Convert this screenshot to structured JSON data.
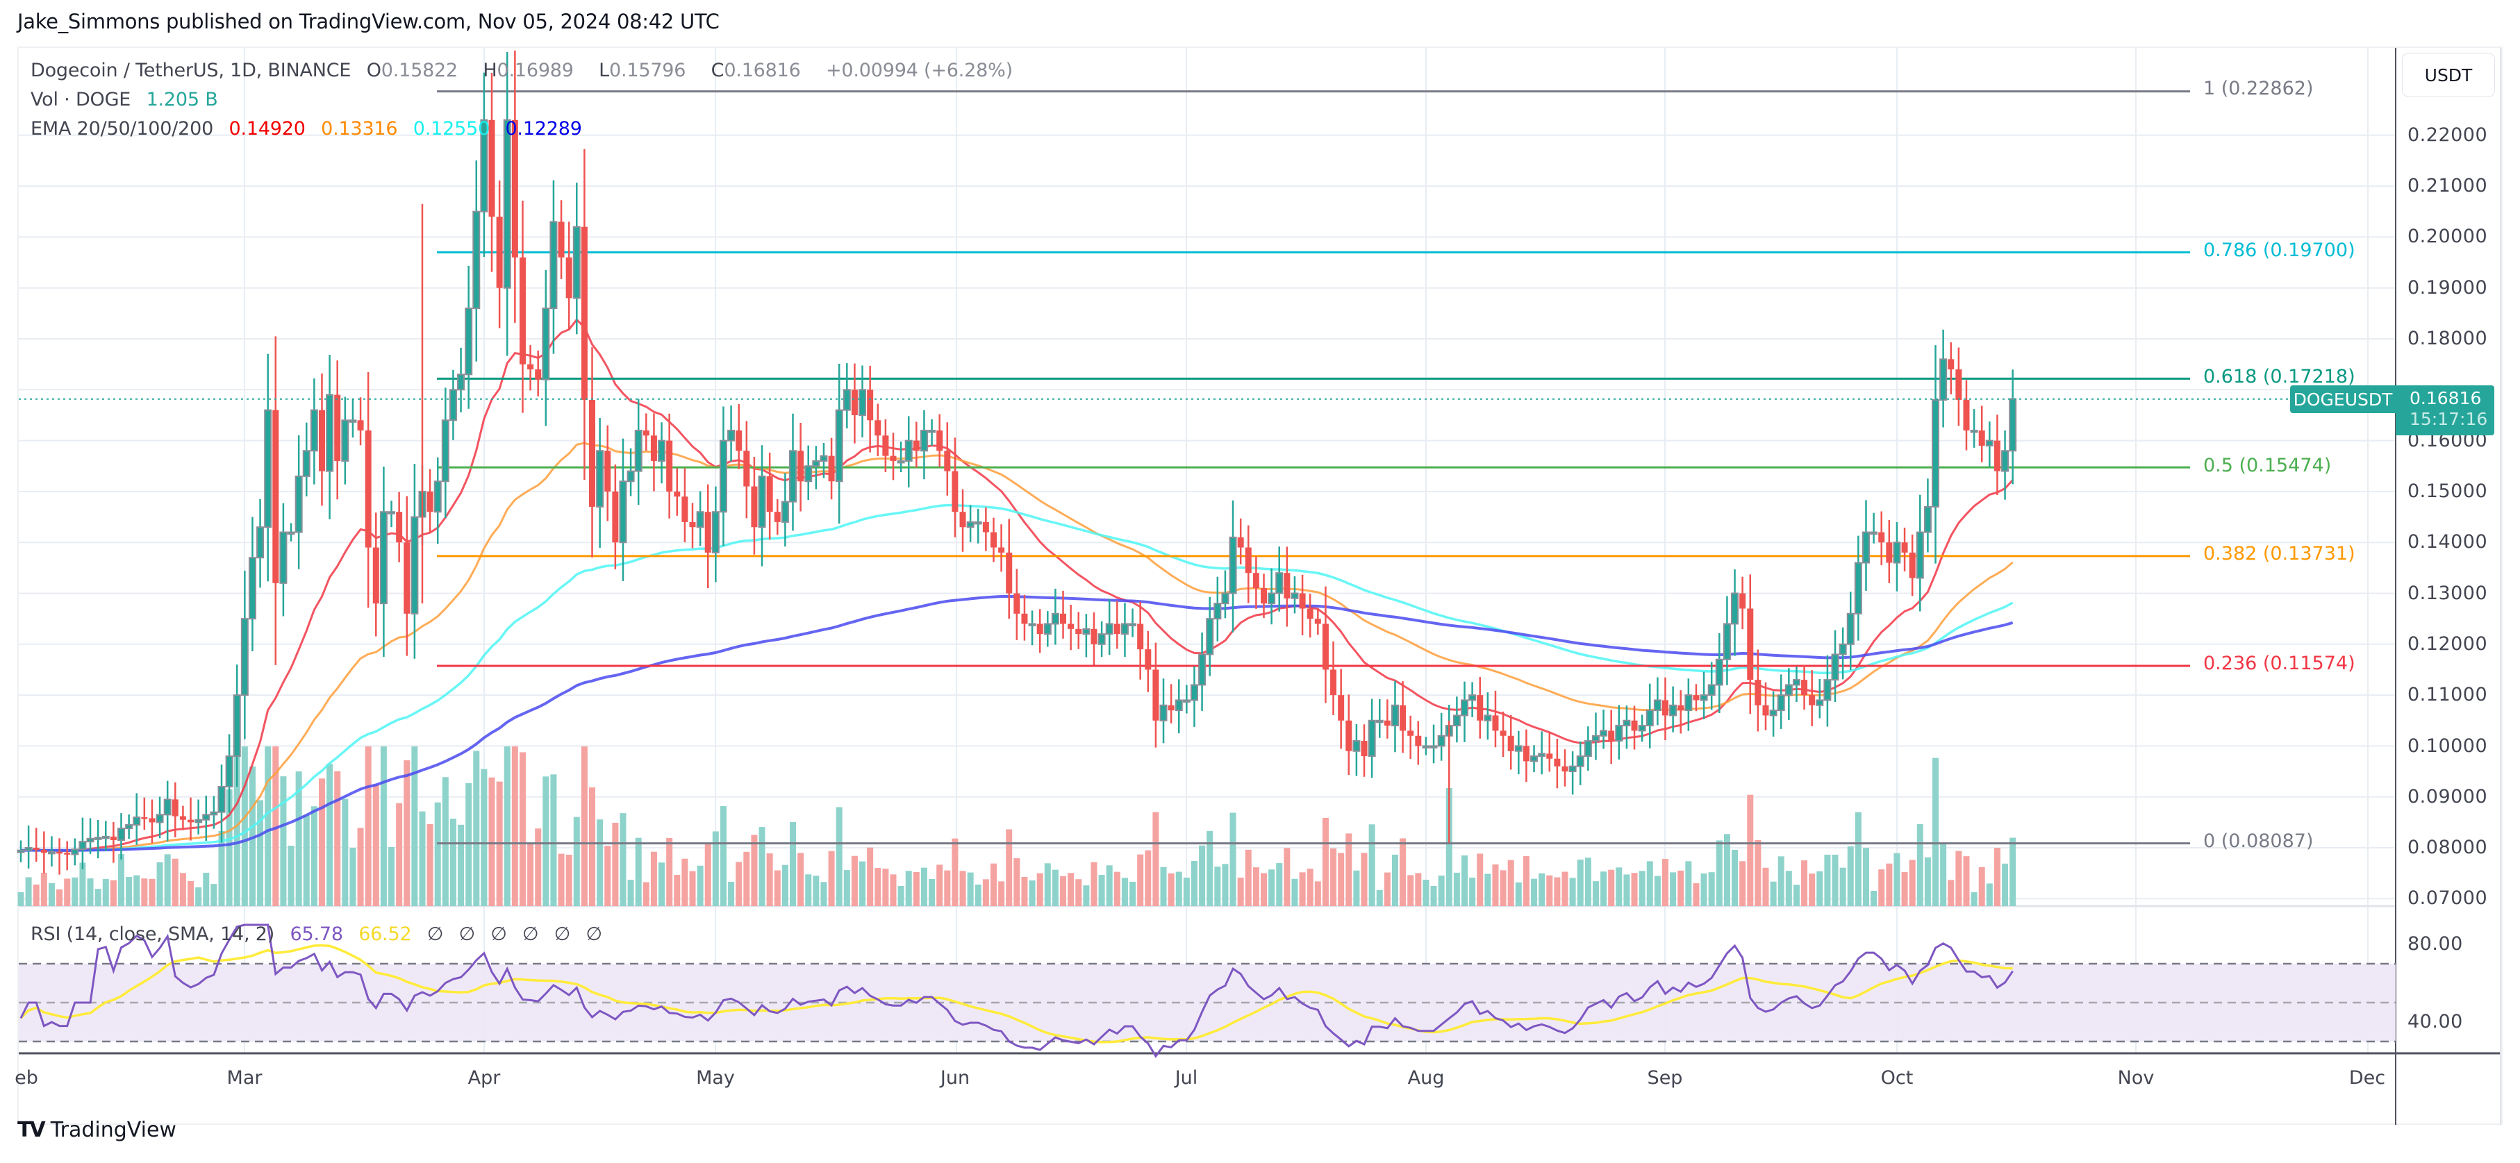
{
  "header": {
    "published_by": "Jake_Simmons published on TradingView.com, Nov 05, 2024 08:42 UTC"
  },
  "legend": {
    "symbol": "Dogecoin / TetherUS, 1D, BINANCE",
    "open_label": "O",
    "open": "0.15822",
    "high_label": "H",
    "high": "0.16989",
    "low_label": "L",
    "low": "0.15796",
    "close_label": "C",
    "close": "0.16816",
    "change": "+0.00994 (+6.28%)",
    "volume_label": "Vol · DOGE",
    "volume_value": "1.205 B",
    "ema_label": "EMA 20/50/100/200",
    "ema20": "0.14920",
    "ema50": "0.13316",
    "ema100": "0.12550",
    "ema200": "0.12289",
    "rsi_label": "RSI (14, close, SMA, 14, 2)",
    "rsi_value": "65.78",
    "rsi_sma_value": "66.52",
    "rsi_empty_slots": [
      "∅",
      "∅",
      "∅",
      "∅",
      "∅",
      "∅"
    ]
  },
  "price_axis": {
    "currency_button": "USDT",
    "ticks": [
      "0.22000",
      "0.21000",
      "0.20000",
      "0.19000",
      "0.18000",
      "0.16000",
      "0.15000",
      "0.14000",
      "0.13000",
      "0.12000",
      "0.11000",
      "0.10000",
      "0.09000",
      "0.08000",
      "0.07000"
    ],
    "rsi_ticks": [
      "80.00",
      "40.00"
    ],
    "current_symbol": "DOGEUSDT",
    "current_price": "0.16816",
    "countdown": "15:17:16"
  },
  "time_axis": {
    "months": [
      "eb",
      "Mar",
      "Apr",
      "May",
      "Jun",
      "Jul",
      "Aug",
      "Sep",
      "Oct",
      "Nov",
      "Dec"
    ]
  },
  "fib_levels": [
    {
      "ratio": "1",
      "price": "0.22862",
      "label": "1 (0.22862)",
      "color": "#787b86"
    },
    {
      "ratio": "0.786",
      "price": "0.19700",
      "label": "0.786 (0.19700)",
      "color": "#00bcd4"
    },
    {
      "ratio": "0.618",
      "price": "0.17218",
      "label": "0.618 (0.17218)",
      "color": "#089981"
    },
    {
      "ratio": "0.5",
      "price": "0.15474",
      "label": "0.5 (0.15474)",
      "color": "#4caf50"
    },
    {
      "ratio": "0.382",
      "price": "0.13731",
      "label": "0.382 (0.13731)",
      "color": "#ff9800"
    },
    {
      "ratio": "0.236",
      "price": "0.11574",
      "label": "0.236 (0.11574)",
      "color": "#f23645"
    },
    {
      "ratio": "0",
      "price": "0.08087",
      "label": "0 (0.08087)",
      "color": "#787b86"
    }
  ],
  "colors": {
    "up": "#26a69a",
    "down": "#ef5350",
    "border": "#8a8f98",
    "ema20": "#f23645",
    "ema50": "#ff9d3a",
    "ema100": "#4ff5f5",
    "ema200": "#4a4af0",
    "rsi": "#7e57c2",
    "rsi_sma": "#ffeb3b",
    "rsi_band": "#ede7f6",
    "grid": "#e8edf3"
  },
  "footer": {
    "brand": "TradingView",
    "logo": "TV"
  },
  "chart_data": {
    "type": "candlestick",
    "title": "Dogecoin / TetherUS, 1D, BINANCE",
    "xlabel": "",
    "ylabel": "USDT",
    "ylim": [
      0.065,
      0.232
    ],
    "x_start": "2024-02-01",
    "x_end": "2024-11-05",
    "candle_keyframes_note": "approximate daily closes read off chart",
    "closes": [
      0.0795,
      0.08,
      0.0796,
      0.079,
      0.0792,
      0.079,
      0.0787,
      0.0797,
      0.0812,
      0.0818,
      0.082,
      0.0822,
      0.0815,
      0.0838,
      0.0845,
      0.086,
      0.0858,
      0.085,
      0.0865,
      0.0895,
      0.0862,
      0.0855,
      0.085,
      0.0855,
      0.0865,
      0.087,
      0.092,
      0.098,
      0.11,
      0.125,
      0.137,
      0.143,
      0.166,
      0.132,
      0.142,
      0.142,
      0.153,
      0.158,
      0.166,
      0.154,
      0.169,
      0.156,
      0.164,
      0.164,
      0.162,
      0.139,
      0.128,
      0.146,
      0.146,
      0.14,
      0.126,
      0.145,
      0.15,
      0.146,
      0.152,
      0.164,
      0.17,
      0.173,
      0.186,
      0.205,
      0.223,
      0.204,
      0.19,
      0.223,
      0.196,
      0.175,
      0.174,
      0.172,
      0.186,
      0.203,
      0.196,
      0.188,
      0.202,
      0.168,
      0.147,
      0.158,
      0.15,
      0.14,
      0.152,
      0.154,
      0.162,
      0.161,
      0.156,
      0.16,
      0.15,
      0.149,
      0.144,
      0.143,
      0.146,
      0.138,
      0.146,
      0.16,
      0.162,
      0.158,
      0.151,
      0.143,
      0.153,
      0.146,
      0.144,
      0.148,
      0.158,
      0.152,
      0.155,
      0.156,
      0.157,
      0.152,
      0.166,
      0.17,
      0.165,
      0.17,
      0.164,
      0.161,
      0.157,
      0.156,
      0.156,
      0.16,
      0.158,
      0.162,
      0.162,
      0.158,
      0.154,
      0.146,
      0.143,
      0.144,
      0.144,
      0.142,
      0.139,
      0.138,
      0.13,
      0.126,
      0.124,
      0.124,
      0.122,
      0.124,
      0.126,
      0.124,
      0.123,
      0.122,
      0.123,
      0.12,
      0.122,
      0.124,
      0.122,
      0.124,
      0.124,
      0.119,
      0.115,
      0.105,
      0.108,
      0.107,
      0.109,
      0.109,
      0.112,
      0.118,
      0.125,
      0.128,
      0.13,
      0.141,
      0.139,
      0.134,
      0.131,
      0.128,
      0.13,
      0.134,
      0.129,
      0.13,
      0.127,
      0.125,
      0.124,
      0.115,
      0.11,
      0.105,
      0.099,
      0.101,
      0.098,
      0.105,
      0.105,
      0.104,
      0.108,
      0.103,
      0.102,
      0.1,
      0.1,
      0.1,
      0.102,
      0.104,
      0.106,
      0.109,
      0.11,
      0.105,
      0.106,
      0.103,
      0.102,
      0.099,
      0.1,
      0.097,
      0.098,
      0.0985,
      0.0975,
      0.096,
      0.095,
      0.096,
      0.098,
      0.101,
      0.102,
      0.103,
      0.101,
      0.104,
      0.105,
      0.103,
      0.104,
      0.107,
      0.109,
      0.106,
      0.108,
      0.107,
      0.11,
      0.109,
      0.11,
      0.112,
      0.117,
      0.124,
      0.13,
      0.127,
      0.113,
      0.108,
      0.106,
      0.107,
      0.11,
      0.112,
      0.113,
      0.11,
      0.108,
      0.109,
      0.113,
      0.118,
      0.12,
      0.126,
      0.136,
      0.142,
      0.142,
      0.14,
      0.136,
      0.14,
      0.138,
      0.133,
      0.142,
      0.147,
      0.168,
      0.176,
      0.174,
      0.168,
      0.162,
      0.162,
      0.159,
      0.16,
      0.154,
      0.158,
      0.1682
    ],
    "fib_levels": {
      "1": 0.22862,
      "0.786": 0.197,
      "0.618": 0.17218,
      "0.5": 0.15474,
      "0.382": 0.13731,
      "0.236": 0.11574,
      "0": 0.08087
    },
    "indicators": {
      "ema20": 0.1492,
      "ema50": 0.13316,
      "ema100": 0.1255,
      "ema200": 0.12289,
      "rsi": 65.78,
      "rsi_sma": 66.52,
      "volume": "1.205 B"
    },
    "rsi_range": [
      20,
      90
    ],
    "rsi_bands": [
      70,
      50,
      30
    ]
  }
}
